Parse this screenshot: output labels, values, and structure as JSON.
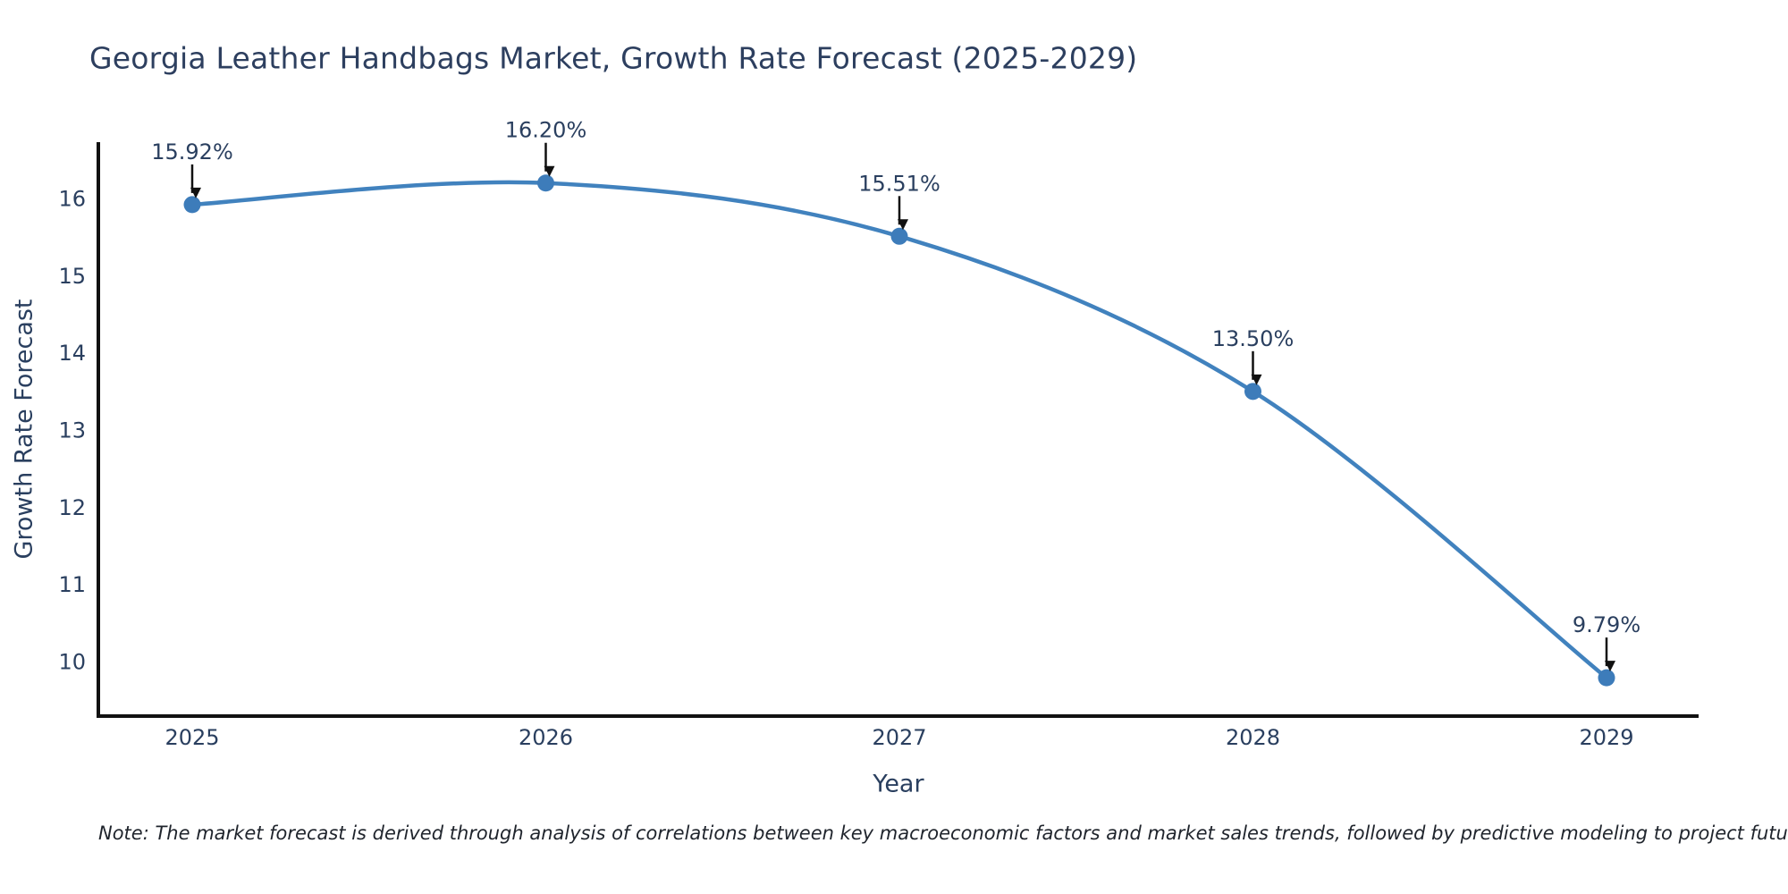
{
  "note": "Note: The market forecast is derived through analysis of correlations between key macroeconomic factors and market sales trends, followed by predictive modeling to project future sales",
  "chart_data": {
    "type": "line",
    "line_shape": "spline",
    "title": "Georgia Leather Handbags Market, Growth Rate Forecast (2025-2029)",
    "xlabel": "Year",
    "ylabel": "Growth Rate Forecast",
    "x": [
      2025,
      2026,
      2027,
      2028,
      2029
    ],
    "values": [
      15.92,
      16.2,
      15.51,
      13.5,
      9.79
    ],
    "point_labels": [
      "15.92%",
      "16.20%",
      "15.51%",
      "13.50%",
      "9.79%"
    ],
    "yticks": [
      10,
      11,
      12,
      13,
      14,
      15,
      16
    ],
    "ylim": [
      9.28,
      16.73
    ],
    "xlim": [
      2024.73,
      2029.26
    ],
    "grid": false,
    "legend": false,
    "colors": {
      "line": "#4182be",
      "marker": "#3d7cba",
      "axis_line": "#111111",
      "text": "#2a3f5f",
      "arrow": "#111111",
      "background": "#ffffff"
    }
  }
}
